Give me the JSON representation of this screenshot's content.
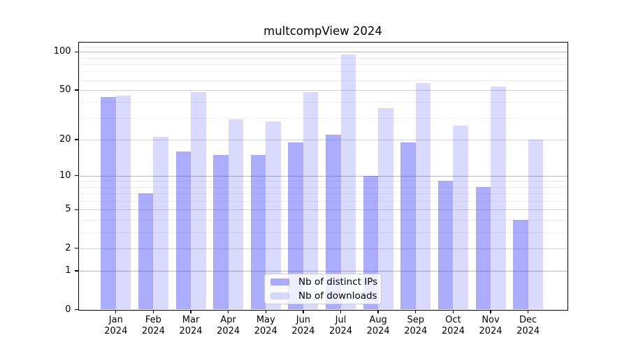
{
  "chart_data": {
    "type": "bar",
    "title": "multcompView 2024",
    "xlabel": "",
    "ylabel": "",
    "scale": "log1p",
    "grid": true,
    "legend_position": "lower center",
    "categories": [
      "Jan",
      "Feb",
      "Mar",
      "Apr",
      "May",
      "Jun",
      "Jul",
      "Aug",
      "Sep",
      "Oct",
      "Nov",
      "Dec"
    ],
    "year": "2024",
    "series": [
      {
        "name": "Nb of distinct IPs",
        "color": "rgba(70,70,250,0.45)",
        "values": [
          44,
          7,
          16,
          15,
          15,
          19,
          22,
          10,
          19,
          9,
          8,
          4
        ]
      },
      {
        "name": "Nb of downloads",
        "color": "rgba(70,70,250,0.20)",
        "values": [
          45,
          21,
          48,
          29,
          28,
          48,
          95,
          36,
          57,
          26,
          53,
          20
        ]
      }
    ],
    "yticks": [
      0,
      1,
      2,
      5,
      10,
      20,
      50,
      100
    ],
    "minor_gridlines": [
      3,
      4,
      6,
      7,
      8,
      9,
      30,
      40,
      60,
      70,
      80,
      90,
      110
    ],
    "decade_gridlines": [
      1,
      10,
      100
    ],
    "ylim": [
      0,
      115
    ],
    "colors": {
      "gridline_decade": "#b9b9b9",
      "gridline_major": "#d2d2d2",
      "gridline_minor": "#efefef",
      "axis": "#000000",
      "text": "#000000",
      "legend_border": "#cccccc",
      "legend_bg": "rgba(255,255,255,0.8)"
    }
  }
}
